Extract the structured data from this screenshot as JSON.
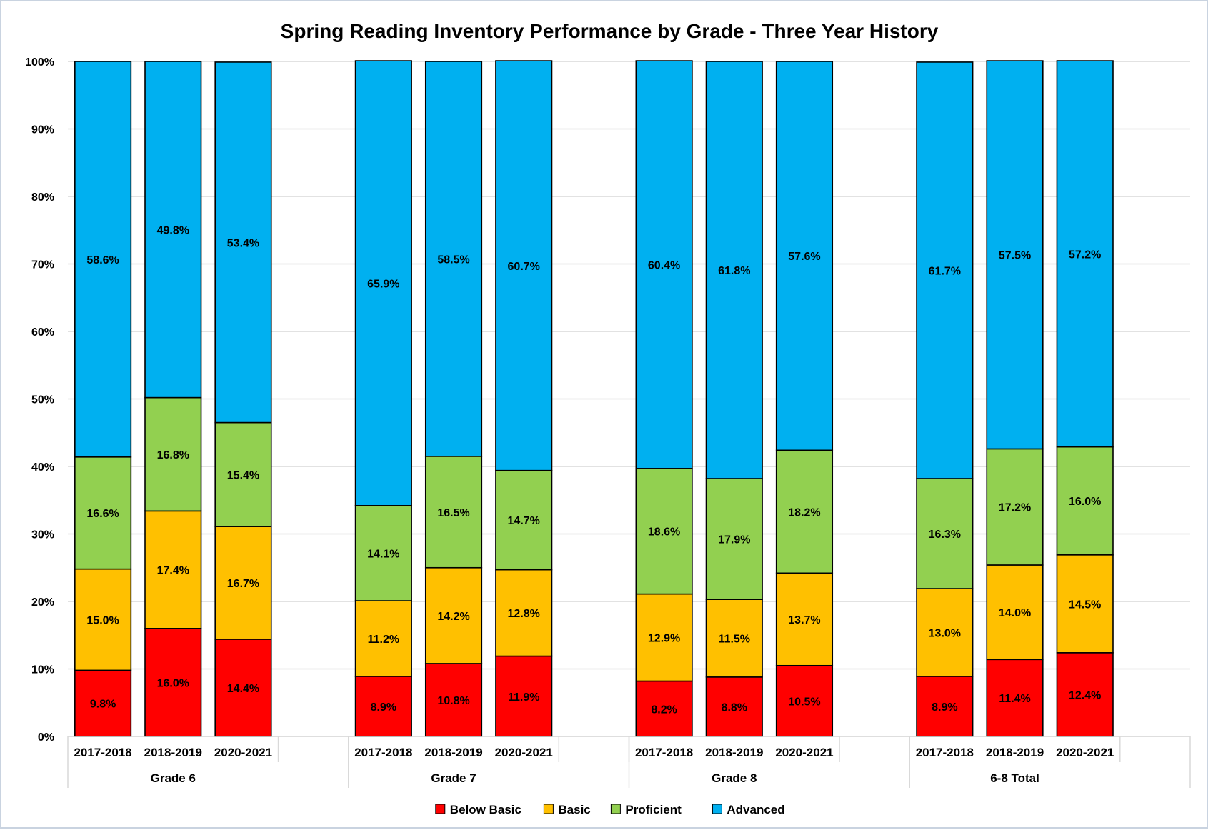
{
  "chart_data": {
    "type": "bar",
    "stacked": true,
    "title": "Spring Reading Inventory Performance by Grade - Three Year History",
    "xlabel": "",
    "ylabel": "",
    "ylim": [
      0,
      100
    ],
    "y_ticks": [
      "0%",
      "10%",
      "20%",
      "30%",
      "40%",
      "50%",
      "60%",
      "70%",
      "80%",
      "90%",
      "100%"
    ],
    "grid": true,
    "legend_position": "bottom",
    "groups": [
      {
        "label": "Grade 6",
        "categories": [
          "2017-2018",
          "2018-2019",
          "2020-2021"
        ]
      },
      {
        "label": "Grade 7",
        "categories": [
          "2017-2018",
          "2018-2019",
          "2020-2021"
        ]
      },
      {
        "label": "Grade 8",
        "categories": [
          "2017-2018",
          "2018-2019",
          "2020-2021"
        ]
      },
      {
        "label": "6-8 Total",
        "categories": [
          "2017-2018",
          "2018-2019",
          "2020-2021"
        ]
      }
    ],
    "series": [
      {
        "name": "Below Basic",
        "color": "#ff0000",
        "values": [
          9.8,
          16.0,
          14.4,
          8.9,
          10.8,
          11.9,
          8.2,
          8.8,
          10.5,
          8.9,
          11.4,
          12.4
        ],
        "labels": [
          "9.8%",
          "16.0%",
          "14.4%",
          "8.9%",
          "10.8%",
          "11.9%",
          "8.2%",
          "8.8%",
          "10.5%",
          "8.9%",
          "11.4%",
          "12.4%"
        ]
      },
      {
        "name": "Basic",
        "color": "#ffc000",
        "values": [
          15.0,
          17.4,
          16.7,
          11.2,
          14.2,
          12.8,
          12.9,
          11.5,
          13.7,
          13.0,
          14.0,
          14.5
        ],
        "labels": [
          "15.0%",
          "17.4%",
          "16.7%",
          "11.2%",
          "14.2%",
          "12.8%",
          "12.9%",
          "11.5%",
          "13.7%",
          "13.0%",
          "14.0%",
          "14.5%"
        ]
      },
      {
        "name": "Proficient",
        "color": "#92d050",
        "values": [
          16.6,
          16.8,
          15.4,
          14.1,
          16.5,
          14.7,
          18.6,
          17.9,
          18.2,
          16.3,
          17.2,
          16.0
        ],
        "labels": [
          "16.6%",
          "16.8%",
          "15.4%",
          "14.1%",
          "16.5%",
          "14.7%",
          "18.6%",
          "17.9%",
          "18.2%",
          "16.3%",
          "17.2%",
          "16.0%"
        ]
      },
      {
        "name": "Advanced",
        "color": "#00b0f0",
        "values": [
          58.6,
          49.8,
          53.4,
          65.9,
          58.5,
          60.7,
          60.4,
          61.8,
          57.6,
          61.7,
          57.5,
          57.2
        ],
        "labels": [
          "58.6%",
          "49.8%",
          "53.4%",
          "65.9%",
          "58.5%",
          "60.7%",
          "60.4%",
          "61.8%",
          "57.6%",
          "61.7%",
          "57.5%",
          "57.2%"
        ]
      }
    ]
  }
}
